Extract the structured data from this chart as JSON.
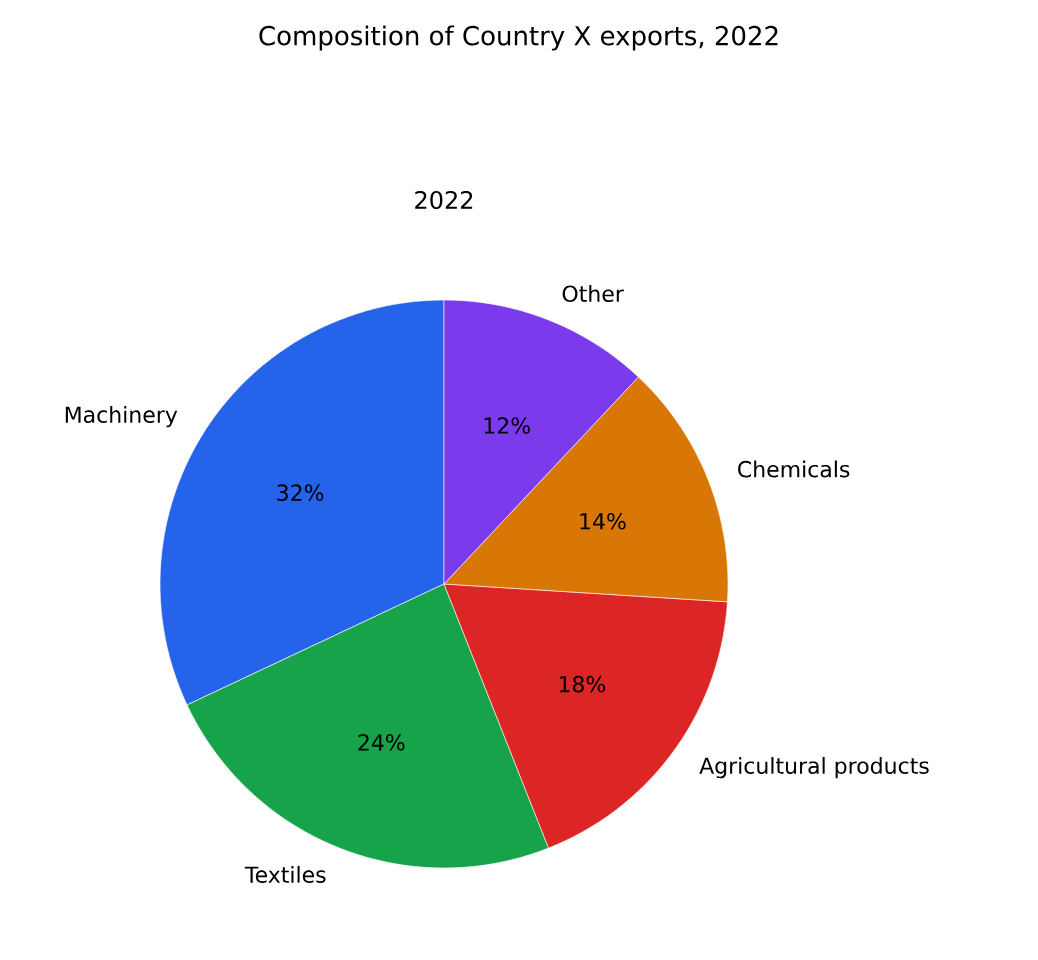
{
  "chart_data": {
    "type": "pie",
    "title": "Composition of Country X exports, 2022",
    "subtitle": "2022",
    "categories": [
      "Machinery",
      "Textiles",
      "Agricultural products",
      "Chemicals",
      "Other"
    ],
    "values": [
      32,
      24,
      18,
      14,
      12
    ],
    "value_labels": [
      "32%",
      "24%",
      "18%",
      "14%",
      "12%"
    ],
    "colors": [
      "#2563eb",
      "#16a34a",
      "#dc2626",
      "#d97706",
      "#7c3aed"
    ]
  }
}
